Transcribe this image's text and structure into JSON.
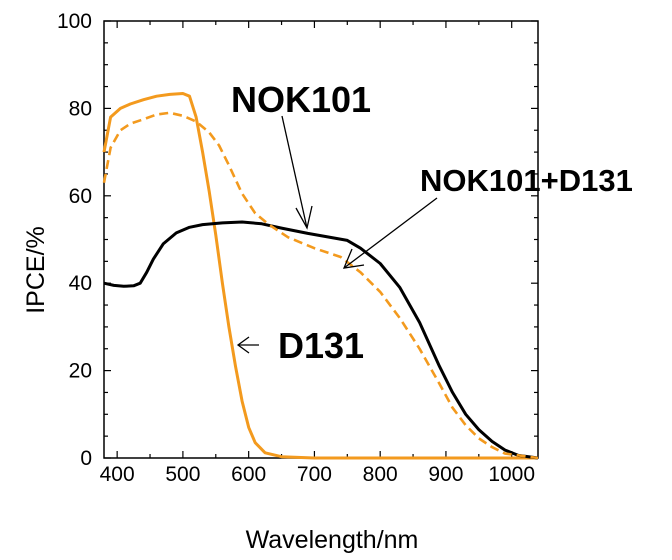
{
  "chart_data": {
    "type": "line",
    "title": "",
    "xlabel": "Wavelength/nm",
    "ylabel": "IPCE/%",
    "xlim": [
      380,
      1040
    ],
    "ylim": [
      0,
      100
    ],
    "x_ticks": [
      "400",
      "500",
      "600",
      "700",
      "800",
      "900",
      "1000"
    ],
    "y_ticks": [
      "0",
      "20",
      "40",
      "60",
      "80",
      "100"
    ],
    "grid": false,
    "colors": {
      "orange": "#F39A1E",
      "black": "#000000"
    },
    "series": [
      {
        "name": "D131",
        "color": "#F39A1E",
        "style": "solid",
        "points": [
          [
            380,
            70
          ],
          [
            390,
            78
          ],
          [
            405,
            80
          ],
          [
            420,
            81
          ],
          [
            440,
            82
          ],
          [
            460,
            82.8
          ],
          [
            480,
            83.2
          ],
          [
            500,
            83.4
          ],
          [
            510,
            82.8
          ],
          [
            520,
            78
          ],
          [
            530,
            70
          ],
          [
            540,
            61
          ],
          [
            550,
            51
          ],
          [
            560,
            40
          ],
          [
            570,
            30
          ],
          [
            580,
            21
          ],
          [
            590,
            13
          ],
          [
            600,
            7
          ],
          [
            610,
            3.5
          ],
          [
            625,
            1.2
          ],
          [
            650,
            0.3
          ],
          [
            700,
            0
          ],
          [
            1040,
            0
          ]
        ]
      },
      {
        "name": "NOK101",
        "color": "#000000",
        "style": "solid",
        "points": [
          [
            380,
            40
          ],
          [
            395,
            39.5
          ],
          [
            410,
            39.3
          ],
          [
            425,
            39.4
          ],
          [
            435,
            40
          ],
          [
            445,
            42.5
          ],
          [
            455,
            45.5
          ],
          [
            470,
            49
          ],
          [
            490,
            51.5
          ],
          [
            510,
            52.8
          ],
          [
            530,
            53.4
          ],
          [
            560,
            53.8
          ],
          [
            590,
            54
          ],
          [
            620,
            53.6
          ],
          [
            650,
            52.6
          ],
          [
            690,
            51.4
          ],
          [
            720,
            50.6
          ],
          [
            750,
            49.8
          ],
          [
            770,
            48
          ],
          [
            800,
            44.5
          ],
          [
            830,
            39
          ],
          [
            860,
            31
          ],
          [
            890,
            21
          ],
          [
            910,
            15
          ],
          [
            930,
            10
          ],
          [
            950,
            6.5
          ],
          [
            970,
            3.8
          ],
          [
            990,
            1.8
          ],
          [
            1010,
            0.6
          ],
          [
            1040,
            0
          ]
        ]
      },
      {
        "name": "NOK101+D131",
        "color": "#F39A1E",
        "style": "dashed",
        "points": [
          [
            380,
            63
          ],
          [
            390,
            71
          ],
          [
            405,
            75
          ],
          [
            420,
            76.5
          ],
          [
            440,
            77.5
          ],
          [
            460,
            78.6
          ],
          [
            480,
            79
          ],
          [
            500,
            78.3
          ],
          [
            520,
            77
          ],
          [
            540,
            74.5
          ],
          [
            555,
            71.5
          ],
          [
            570,
            67
          ],
          [
            590,
            60.5
          ],
          [
            610,
            56
          ],
          [
            630,
            53.5
          ],
          [
            660,
            50.5
          ],
          [
            700,
            48
          ],
          [
            740,
            46
          ],
          [
            770,
            42.5
          ],
          [
            800,
            38
          ],
          [
            830,
            32
          ],
          [
            860,
            25
          ],
          [
            890,
            17
          ],
          [
            910,
            11.5
          ],
          [
            930,
            7.5
          ],
          [
            950,
            4.5
          ],
          [
            970,
            2.5
          ],
          [
            990,
            1
          ],
          [
            1040,
            0
          ]
        ]
      }
    ],
    "annotations": [
      {
        "id": "nok101",
        "text": "NOK101"
      },
      {
        "id": "nok101d131",
        "text": "NOK101+D131"
      },
      {
        "id": "d131",
        "text": "D131"
      }
    ]
  }
}
